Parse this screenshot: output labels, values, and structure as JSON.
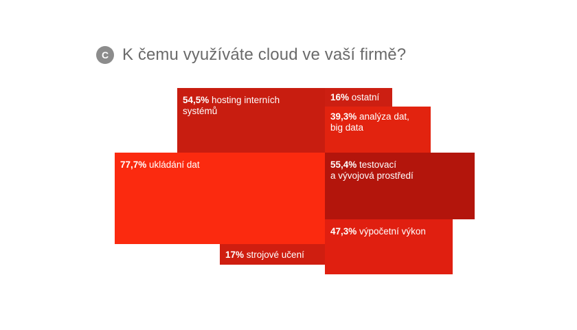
{
  "header": {
    "badge": "C",
    "title": "K čemu využíváte cloud ve vaší firmě?"
  },
  "chart_data": {
    "type": "treemap",
    "title": "K čemu využíváte cloud ve vaší firmě?",
    "unit": "%",
    "items": [
      {
        "id": "hosting",
        "pct": "54,5%",
        "label": "hosting interních\nsystémů",
        "value": 54.5
      },
      {
        "id": "ostatni",
        "pct": "16%",
        "label": "ostatní",
        "value": 16
      },
      {
        "id": "analyza",
        "pct": "39,3%",
        "label": "analýza dat,\nbig data",
        "value": 39.3
      },
      {
        "id": "ukladani",
        "pct": "77,7%",
        "label": "ukládání dat",
        "value": 77.7
      },
      {
        "id": "testovaci",
        "pct": "55,4%",
        "label": "testovací\na vývojová prostředí",
        "value": 55.4
      },
      {
        "id": "vykon",
        "pct": "47,3%",
        "label": "výpočetní výkon",
        "value": 47.3
      },
      {
        "id": "strojove",
        "pct": "17%",
        "label": "strojové učení",
        "value": 17
      }
    ],
    "colors": {
      "hosting": "#c81d10",
      "ostatni": "#cc1f12",
      "analyza": "#e2230f",
      "ukladani": "#fb2a0f",
      "testovaci": "#b3150c",
      "vykon": "#e01f10",
      "strojove": "#cf1e10"
    }
  }
}
